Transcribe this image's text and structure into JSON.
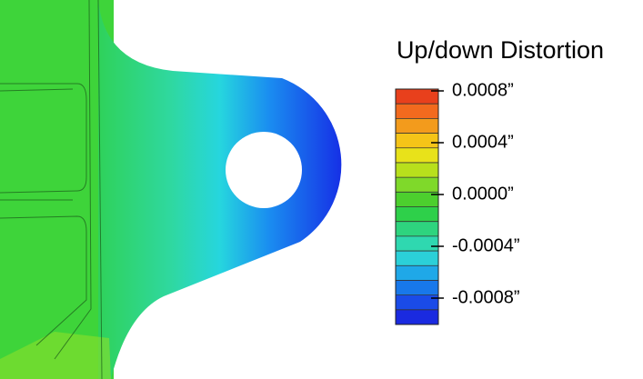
{
  "legend": {
    "title": "Up/down Distortion",
    "labels": [
      "0.0008”",
      "0.0004”",
      "0.0000”",
      "-0.0004”",
      "-0.0008”"
    ]
  }
}
